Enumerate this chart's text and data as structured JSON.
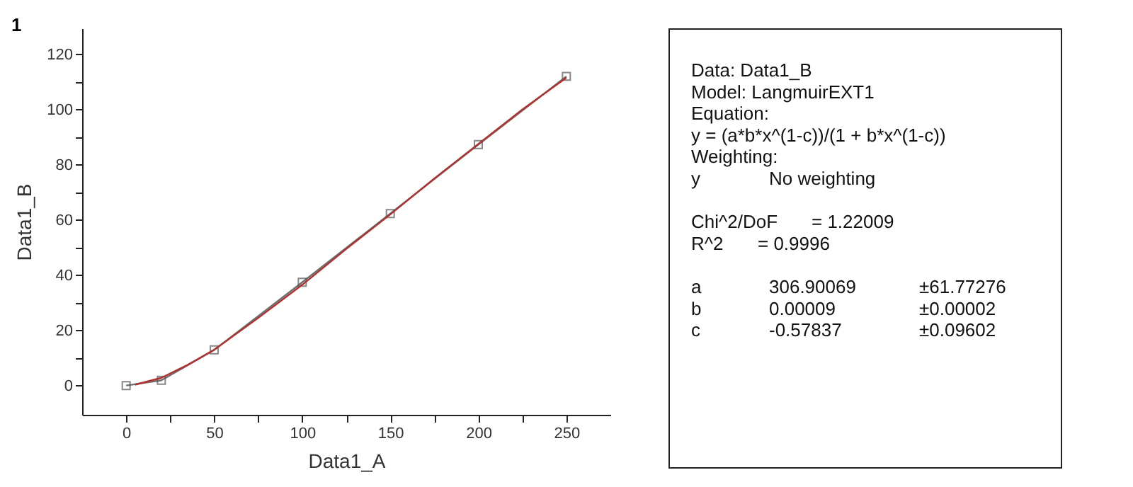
{
  "chart_data": [
    {
      "type": "line",
      "xlabel": "Data1_A",
      "ylabel": "Data1_B",
      "annotations": [
        "1"
      ],
      "xlim": [
        -25,
        275
      ],
      "ylim": [
        -10.6,
        129.4
      ],
      "xticks": [
        0,
        {
          "value": 25,
          "label": null
        },
        50,
        {
          "value": 75,
          "label": null
        },
        100,
        {
          "value": 125,
          "label": null
        },
        150,
        {
          "value": 175,
          "label": null
        },
        200,
        {
          "value": 225,
          "label": null
        },
        250
      ],
      "yticks": [
        0,
        {
          "value": 10,
          "label": null
        },
        20,
        {
          "value": 30,
          "label": null
        },
        40,
        {
          "value": 50,
          "label": null
        },
        60,
        {
          "value": 70,
          "label": null
        },
        80,
        {
          "value": 90,
          "label": null
        },
        100,
        {
          "value": 110,
          "label": null
        },
        120
      ],
      "grid": false,
      "series": [
        {
          "color": "#6e6e6e",
          "marker": "square",
          "line_style": "solid",
          "x": [
            0,
            20,
            50,
            100,
            150,
            200,
            250
          ],
          "values": [
            0,
            1.9,
            12.9,
            37.4,
            62.3,
            87.3,
            112.0
          ]
        },
        {
          "color": "#b03030",
          "marker": "none",
          "line_style": "solid",
          "x": [
            5,
            20,
            35,
            50,
            75,
            100,
            125,
            150,
            175,
            200,
            225,
            250
          ],
          "values": [
            0.3,
            2.8,
            7.5,
            13,
            24.5,
            36.5,
            49.5,
            62,
            75,
            87.5,
            100,
            111.5
          ]
        }
      ]
    },
    {
      "type": "other",
      "annotations": [
        "Data: Data1_B",
        "Model: LangmuirEXT1",
        "Equation:",
        "y = (a*b*x^(1-c))/(1 + b*x^(1-c))",
        "Weighting:",
        "y",
        "No weighting",
        "Chi^2/DoF",
        "= 1.22009",
        "R^2",
        "= 0.9996",
        "a",
        "306.90069",
        "±61.77276",
        "b",
        "0.00009",
        "±0.00002",
        "c",
        "-0.57837",
        "±0.09602"
      ]
    }
  ]
}
